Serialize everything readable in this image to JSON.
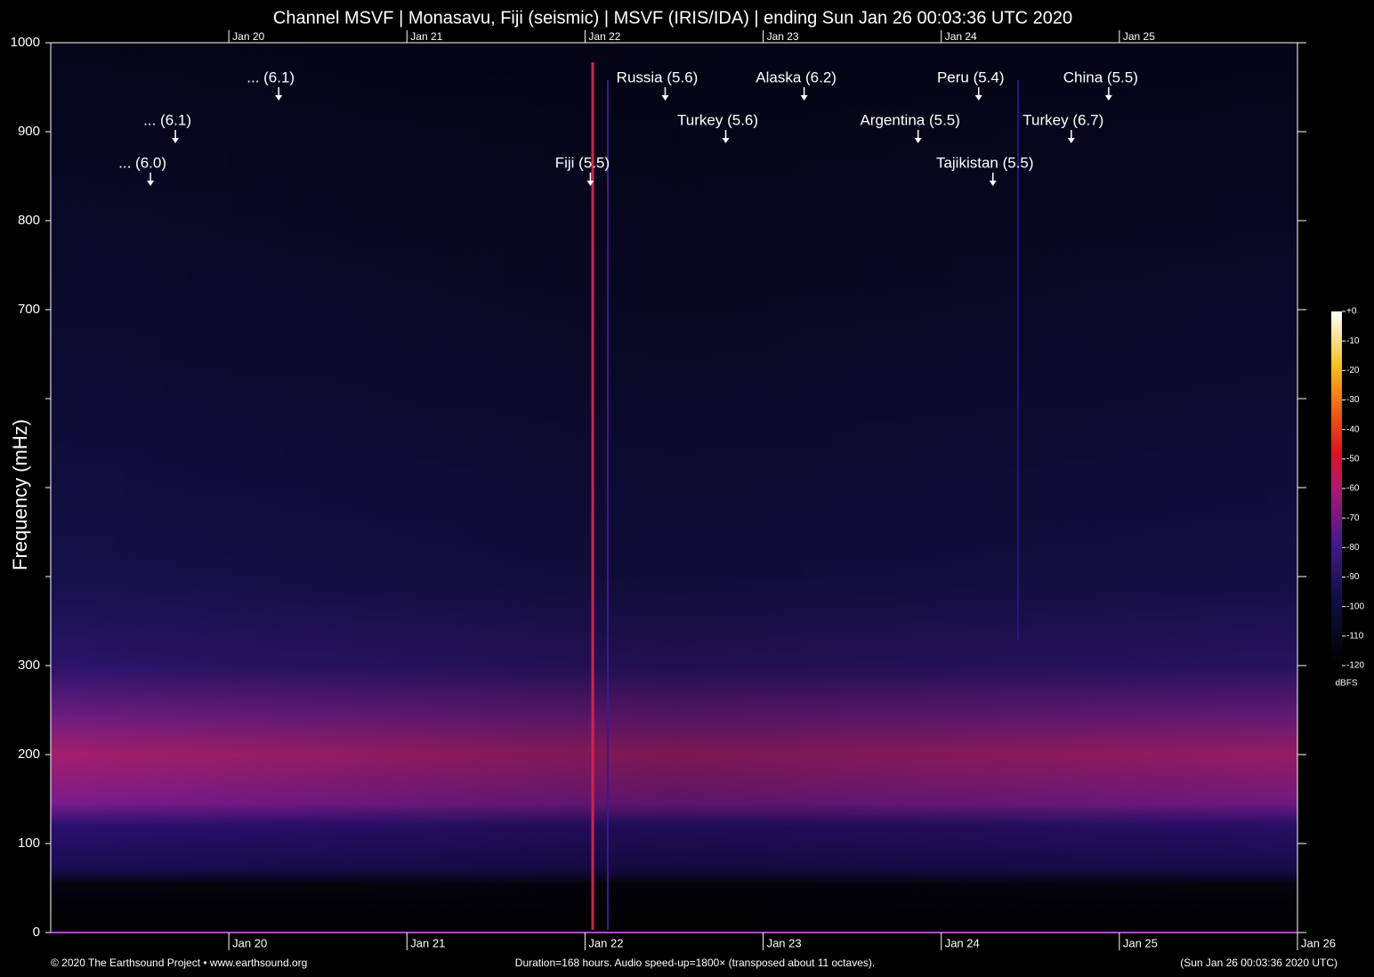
{
  "chart_data": {
    "type": "spectrogram",
    "title": "Channel MSVF | Monasavu, Fiji (seismic) | MSVF (IRIS/IDA) | ending Sun Jan 26 00:03:36 UTC 2020",
    "y_label": "Frequency (mHz)",
    "ylim": [
      0,
      1000
    ],
    "yticks": [
      0,
      100,
      200,
      300,
      700,
      800,
      900,
      1000
    ],
    "minor_yticks": [
      400,
      500,
      600
    ],
    "xlim": [
      0,
      7
    ],
    "xticks": [
      {
        "value": 1,
        "label": "Jan 20"
      },
      {
        "value": 2,
        "label": "Jan 21"
      },
      {
        "value": 3,
        "label": "Jan 22"
      },
      {
        "value": 4,
        "label": "Jan 23"
      },
      {
        "value": 5,
        "label": "Jan 24"
      },
      {
        "value": 6,
        "label": "Jan 25"
      },
      {
        "value": 7,
        "label": "Jan 26"
      }
    ],
    "annotations": [
      {
        "label": "... (6.0)",
        "x": 0.56,
        "y": 839
      },
      {
        "label": "... (6.1)",
        "x": 0.7,
        "y": 887
      },
      {
        "label": "... (6.1)",
        "x": 1.28,
        "y": 935
      },
      {
        "label": "Fiji (5.5)",
        "x": 3.03,
        "y": 839
      },
      {
        "label": "Russia (5.6)",
        "x": 3.45,
        "y": 935
      },
      {
        "label": "Turkey (5.6)",
        "x": 3.79,
        "y": 887
      },
      {
        "label": "Alaska (6.2)",
        "x": 4.23,
        "y": 935
      },
      {
        "label": "Argentina (5.5)",
        "x": 4.87,
        "y": 887
      },
      {
        "label": "Tajikistan (5.5)",
        "x": 5.29,
        "y": 839
      },
      {
        "label": "Peru (5.4)",
        "x": 5.21,
        "y": 935
      },
      {
        "label": "Turkey (6.7)",
        "x": 5.73,
        "y": 887
      },
      {
        "label": "China (5.5)",
        "x": 5.94,
        "y": 935
      }
    ],
    "colorbar": {
      "label": "dBFS",
      "lim": [
        -120,
        0
      ],
      "ticks": [
        {
          "value": 0,
          "label": "+0"
        },
        -10,
        -20,
        -30,
        -40,
        -50,
        -60,
        -70,
        -80,
        -90,
        -100,
        -110,
        -120
      ]
    },
    "footer_left": "© 2020 The Earthsound Project • www.earthsound.org",
    "footer_center": "Duration=168 hours. Audio speed-up=1800× (transposed about 11 octaves).",
    "footer_right": "(Sun Jan 26 00:03:36 2020 UTC)"
  }
}
